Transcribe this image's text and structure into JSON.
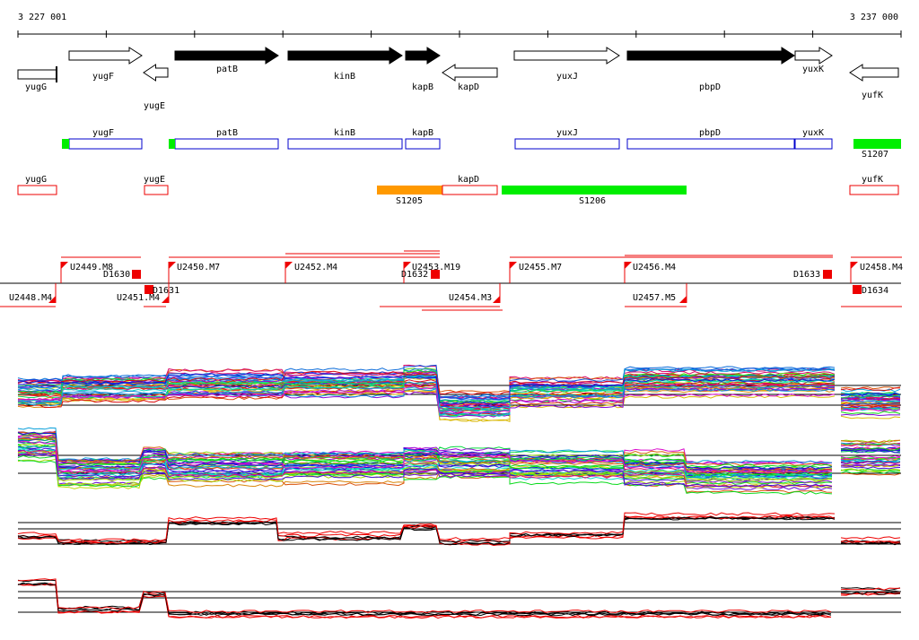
{
  "ruler": {
    "start": "3 227 001",
    "end": "3 237 000"
  },
  "genes": [
    "yugG",
    "yugF",
    "yugE",
    "patB",
    "kinB",
    "kapB",
    "kapD",
    "yuxJ",
    "pbpD",
    "yuxK",
    "yufK"
  ],
  "annotations": [
    "yugF",
    "patB",
    "kinB",
    "kapB",
    "yuxJ",
    "pbpD",
    "yuxK",
    "S1207"
  ],
  "regions": [
    "yugG",
    "yugE",
    "S1205",
    "kapD",
    "S1206",
    "yufK"
  ],
  "segments": [
    "U2449.M8",
    "D1630",
    "U2450.M7",
    "U2452.M4",
    "U2453.M19",
    "D1632",
    "U2455.M7",
    "U2456.M4",
    "D1633",
    "U2458.M4",
    "U2448.M4",
    "U2451.M4",
    "D1631",
    "U2454.M3",
    "U2457.M5",
    "D1634"
  ]
}
